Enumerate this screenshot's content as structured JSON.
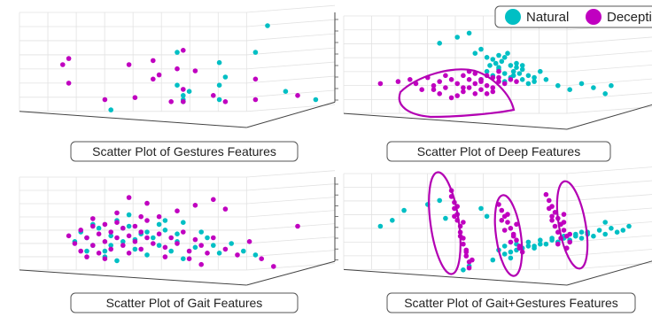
{
  "legend": {
    "entries": [
      {
        "label": "Natural",
        "color": "#00bfc4"
      },
      {
        "label": "Deceptive",
        "color": "#c000c0"
      }
    ]
  },
  "chart_data": [
    {
      "type": "scatter",
      "title": "Scatter Plot of Gestures Features",
      "grid": true,
      "series": [
        {
          "name": "Natural",
          "color": "#00bfc4",
          "x": [
            0.28,
            0.52,
            0.52,
            0.5,
            0.64,
            0.64,
            0.5,
            0.76,
            0.8,
            0.64,
            0.52,
            0.54,
            0.66,
            0.96,
            0.86
          ],
          "y": [
            0.12,
            0.22,
            0.2,
            0.36,
            0.36,
            0.58,
            0.68,
            0.68,
            0.94,
            0.22,
            0.26,
            0.3,
            0.44,
            0.22,
            0.3
          ]
        },
        {
          "name": "Deceptive",
          "color": "#c000c0",
          "x": [
            0.14,
            0.14,
            0.26,
            0.36,
            0.42,
            0.42,
            0.52,
            0.52,
            0.52,
            0.66,
            0.76,
            0.76,
            0.9,
            0.12,
            0.44,
            0.5,
            0.56,
            0.48,
            0.62,
            0.34
          ],
          "y": [
            0.38,
            0.62,
            0.22,
            0.24,
            0.42,
            0.6,
            0.7,
            0.2,
            0.32,
            0.2,
            0.22,
            0.42,
            0.26,
            0.56,
            0.46,
            0.52,
            0.5,
            0.2,
            0.26,
            0.56
          ]
        }
      ]
    },
    {
      "type": "scatter",
      "title": "Scatter Plot of Deep Features",
      "grid": true,
      "series": [
        {
          "name": "Natural",
          "color": "#00bfc4",
          "x": [
            0.3,
            0.36,
            0.4,
            0.42,
            0.44,
            0.46,
            0.47,
            0.48,
            0.49,
            0.5,
            0.5,
            0.51,
            0.52,
            0.53,
            0.54,
            0.55,
            0.56,
            0.57,
            0.58,
            0.6,
            0.62,
            0.64,
            0.66,
            0.7,
            0.74,
            0.78,
            0.82,
            0.86,
            0.88,
            0.46,
            0.48,
            0.52,
            0.54,
            0.44,
            0.56,
            0.58,
            0.6,
            0.62,
            0.5,
            0.52,
            0.55,
            0.58
          ],
          "y": [
            0.8,
            0.86,
            0.9,
            0.7,
            0.74,
            0.66,
            0.58,
            0.64,
            0.6,
            0.68,
            0.56,
            0.62,
            0.66,
            0.7,
            0.58,
            0.52,
            0.6,
            0.5,
            0.54,
            0.48,
            0.42,
            0.52,
            0.44,
            0.38,
            0.34,
            0.4,
            0.36,
            0.3,
            0.38,
            0.52,
            0.48,
            0.5,
            0.46,
            0.44,
            0.56,
            0.44,
            0.4,
            0.46,
            0.54,
            0.42,
            0.48,
            0.58
          ]
        },
        {
          "name": "Deceptive",
          "color": "#c000c0",
          "x": [
            0.1,
            0.16,
            0.2,
            0.22,
            0.24,
            0.26,
            0.28,
            0.3,
            0.3,
            0.32,
            0.34,
            0.34,
            0.36,
            0.38,
            0.38,
            0.4,
            0.4,
            0.42,
            0.42,
            0.44,
            0.44,
            0.46,
            0.46,
            0.48,
            0.48,
            0.5,
            0.5,
            0.52,
            0.54,
            0.56,
            0.36,
            0.32,
            0.28,
            0.42,
            0.46,
            0.4,
            0.38,
            0.44,
            0.5,
            0.48
          ],
          "y": [
            0.4,
            0.42,
            0.44,
            0.4,
            0.34,
            0.46,
            0.38,
            0.42,
            0.3,
            0.36,
            0.44,
            0.26,
            0.4,
            0.32,
            0.48,
            0.36,
            0.44,
            0.3,
            0.4,
            0.34,
            0.44,
            0.38,
            0.48,
            0.36,
            0.46,
            0.42,
            0.52,
            0.4,
            0.44,
            0.42,
            0.28,
            0.48,
            0.34,
            0.5,
            0.3,
            0.52,
            0.36,
            0.42,
            0.46,
            0.32
          ]
        }
      ]
    },
    {
      "type": "scatter",
      "title": "Scatter Plot of Gait Features",
      "grid": true,
      "series": [
        {
          "name": "Natural",
          "color": "#00bfc4",
          "x": [
            0.16,
            0.18,
            0.2,
            0.22,
            0.24,
            0.26,
            0.28,
            0.3,
            0.32,
            0.34,
            0.36,
            0.38,
            0.4,
            0.42,
            0.44,
            0.46,
            0.48,
            0.5,
            0.52,
            0.56,
            0.6,
            0.64,
            0.68,
            0.72,
            0.76,
            0.3,
            0.26,
            0.34,
            0.4,
            0.46,
            0.52,
            0.22,
            0.28,
            0.36,
            0.44,
            0.5,
            0.58,
            0.62,
            0.2,
            0.32
          ],
          "y": [
            0.4,
            0.5,
            0.44,
            0.36,
            0.54,
            0.3,
            0.46,
            0.2,
            0.4,
            0.56,
            0.32,
            0.48,
            0.26,
            0.44,
            0.36,
            0.52,
            0.3,
            0.4,
            0.6,
            0.34,
            0.44,
            0.28,
            0.38,
            0.3,
            0.26,
            0.62,
            0.24,
            0.68,
            0.5,
            0.62,
            0.22,
            0.58,
            0.36,
            0.42,
            0.58,
            0.48,
            0.5,
            0.36,
            0.3,
            0.54
          ]
        },
        {
          "name": "Deceptive",
          "color": "#c000c0",
          "x": [
            0.14,
            0.16,
            0.18,
            0.18,
            0.2,
            0.22,
            0.22,
            0.24,
            0.24,
            0.26,
            0.26,
            0.28,
            0.28,
            0.3,
            0.3,
            0.32,
            0.32,
            0.34,
            0.34,
            0.36,
            0.36,
            0.38,
            0.38,
            0.4,
            0.4,
            0.42,
            0.44,
            0.46,
            0.48,
            0.5,
            0.52,
            0.54,
            0.56,
            0.58,
            0.6,
            0.62,
            0.66,
            0.7,
            0.74,
            0.78,
            0.82,
            0.9,
            0.34,
            0.4,
            0.44,
            0.5,
            0.56,
            0.62,
            0.66,
            0.22,
            0.3,
            0.38,
            0.46,
            0.54,
            0.58,
            0.2,
            0.26
          ],
          "y": [
            0.46,
            0.38,
            0.52,
            0.3,
            0.44,
            0.56,
            0.36,
            0.48,
            0.28,
            0.58,
            0.4,
            0.5,
            0.32,
            0.6,
            0.44,
            0.54,
            0.36,
            0.46,
            0.28,
            0.56,
            0.4,
            0.5,
            0.32,
            0.44,
            0.62,
            0.38,
            0.48,
            0.34,
            0.44,
            0.38,
            0.5,
            0.3,
            0.42,
            0.36,
            0.28,
            0.44,
            0.32,
            0.26,
            0.4,
            0.22,
            0.14,
            0.56,
            0.86,
            0.8,
            0.66,
            0.72,
            0.78,
            0.84,
            0.74,
            0.64,
            0.7,
            0.66,
            0.24,
            0.22,
            0.16,
            0.24,
            0.22
          ]
        }
      ]
    },
    {
      "type": "scatter",
      "title": "Scatter Plot of Gait+Gestures Features",
      "grid": true,
      "series": [
        {
          "name": "Natural",
          "color": "#00bfc4",
          "x": [
            0.1,
            0.14,
            0.18,
            0.26,
            0.3,
            0.32,
            0.36,
            0.44,
            0.46,
            0.5,
            0.52,
            0.54,
            0.56,
            0.58,
            0.6,
            0.62,
            0.64,
            0.66,
            0.68,
            0.7,
            0.72,
            0.74,
            0.76,
            0.78,
            0.8,
            0.82,
            0.84,
            0.86,
            0.88,
            0.9,
            0.92,
            0.94,
            0.52,
            0.56,
            0.6,
            0.64,
            0.68,
            0.72,
            0.76,
            0.8,
            0.54,
            0.62,
            0.7,
            0.78,
            0.4,
            0.48,
            0.38,
            0.86
          ],
          "y": [
            0.54,
            0.6,
            0.7,
            0.76,
            0.8,
            0.62,
            0.66,
            0.72,
            0.64,
            0.3,
            0.34,
            0.28,
            0.36,
            0.32,
            0.38,
            0.34,
            0.4,
            0.36,
            0.42,
            0.38,
            0.44,
            0.4,
            0.46,
            0.42,
            0.48,
            0.44,
            0.5,
            0.46,
            0.52,
            0.48,
            0.5,
            0.54,
            0.26,
            0.3,
            0.34,
            0.36,
            0.4,
            0.42,
            0.44,
            0.46,
            0.22,
            0.32,
            0.38,
            0.48,
            0.14,
            0.2,
            0.1,
            0.58
          ]
        },
        {
          "name": "Deceptive",
          "color": "#c000c0",
          "x": [
            0.34,
            0.34,
            0.35,
            0.35,
            0.36,
            0.36,
            0.37,
            0.37,
            0.38,
            0.38,
            0.39,
            0.39,
            0.4,
            0.4,
            0.36,
            0.38,
            0.35,
            0.37,
            0.39,
            0.41,
            0.5,
            0.51,
            0.52,
            0.53,
            0.54,
            0.55,
            0.56,
            0.57,
            0.58,
            0.52,
            0.54,
            0.56,
            0.53,
            0.55,
            0.57,
            0.51,
            0.66,
            0.67,
            0.68,
            0.69,
            0.7,
            0.71,
            0.72,
            0.73,
            0.74,
            0.68,
            0.7,
            0.72,
            0.69,
            0.71,
            0.73,
            0.67,
            0.7,
            0.72,
            0.74,
            0.68
          ],
          "y": [
            0.9,
            0.84,
            0.78,
            0.72,
            0.66,
            0.6,
            0.54,
            0.48,
            0.42,
            0.36,
            0.3,
            0.24,
            0.18,
            0.12,
            0.74,
            0.58,
            0.64,
            0.44,
            0.28,
            0.2,
            0.76,
            0.7,
            0.64,
            0.58,
            0.52,
            0.46,
            0.4,
            0.34,
            0.28,
            0.5,
            0.38,
            0.56,
            0.66,
            0.44,
            0.32,
            0.6,
            0.86,
            0.8,
            0.74,
            0.68,
            0.62,
            0.56,
            0.5,
            0.44,
            0.38,
            0.6,
            0.48,
            0.66,
            0.54,
            0.42,
            0.32,
            0.72,
            0.36,
            0.58,
            0.46,
            0.64
          ]
        }
      ]
    }
  ]
}
